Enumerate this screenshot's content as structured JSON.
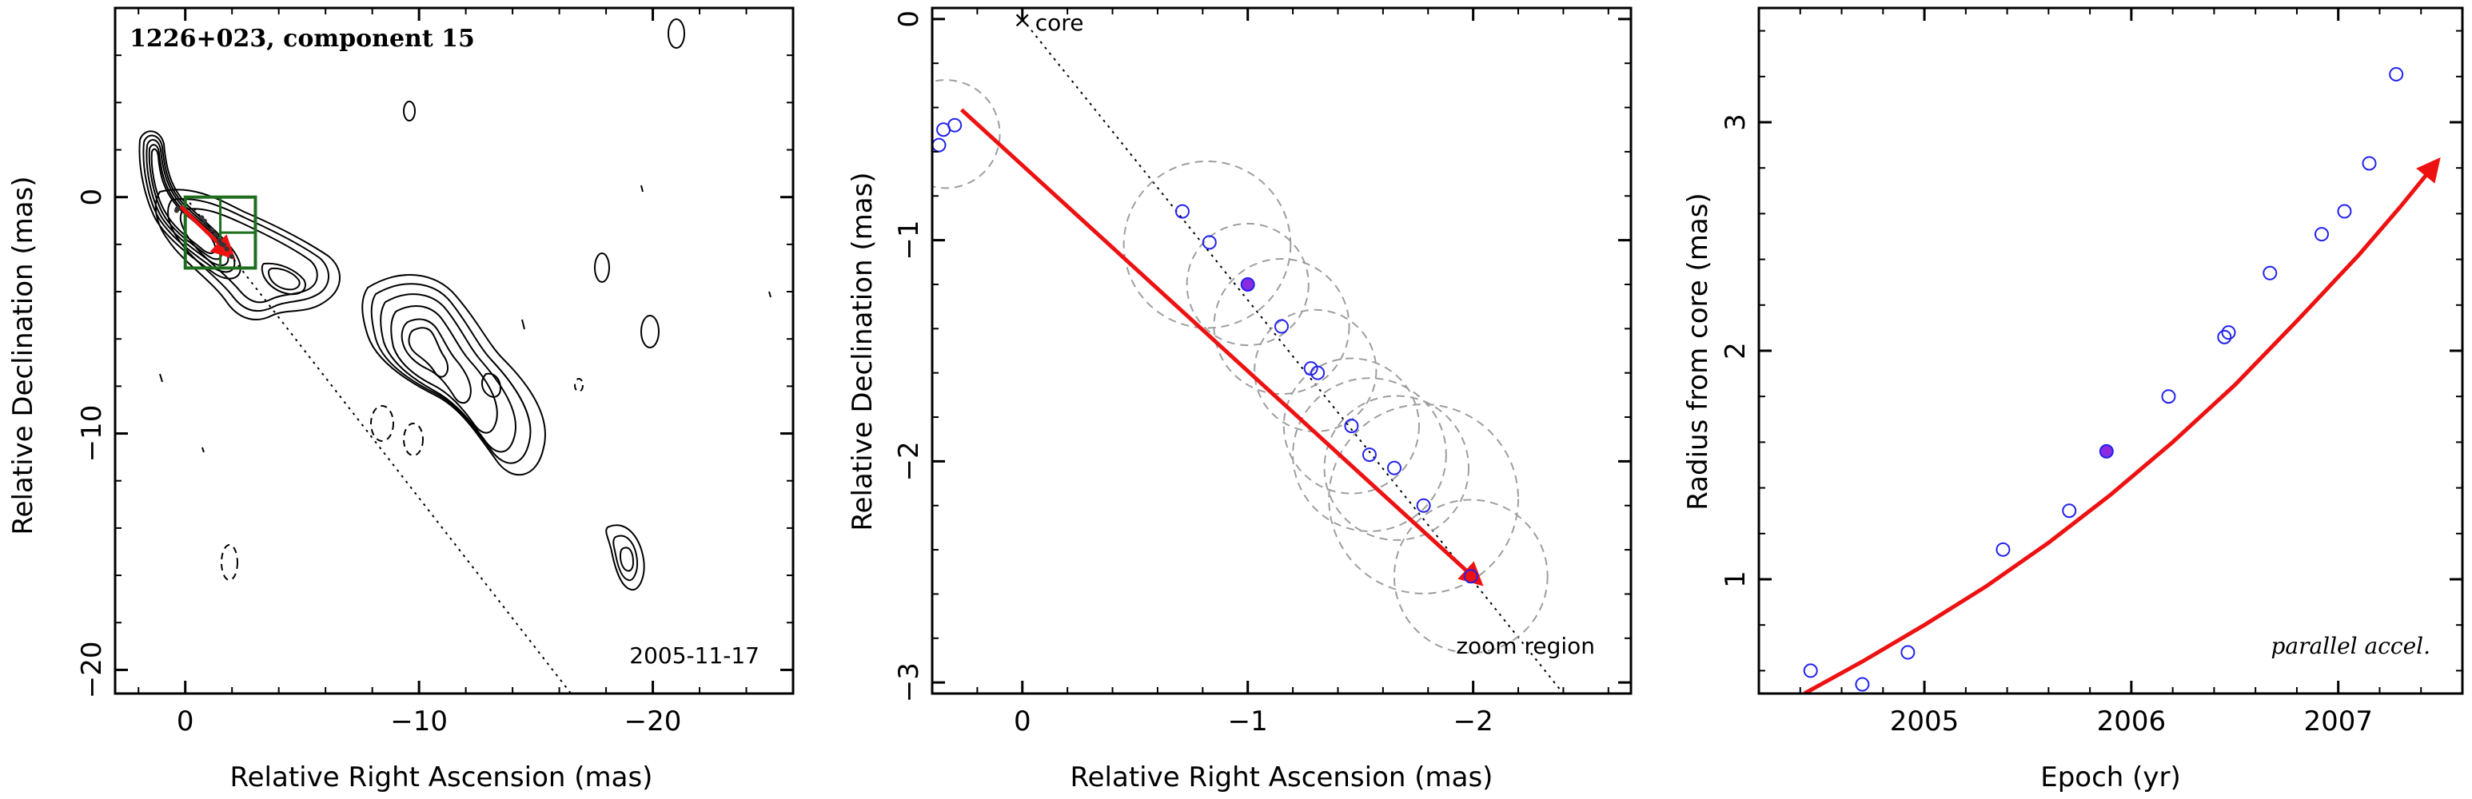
{
  "chart_data": [
    {
      "type": "contour",
      "title": "1226+023, component 15",
      "date": "2005-11-17",
      "xlabel": "Relative Right Ascension (mas)",
      "ylabel": "Relative Declination (mas)",
      "xlim": [
        3,
        -26
      ],
      "ylim": [
        -21,
        8
      ],
      "xticks": [
        0,
        -10,
        -20
      ],
      "yticks": [
        0,
        -10,
        -20
      ],
      "xtick_labels": [
        "0",
        "−10",
        "−20"
      ],
      "ytick_labels": [
        "0",
        "−10",
        "−20"
      ],
      "zoom_box": {
        "x": [
          0,
          -3
        ],
        "y": [
          0,
          -3
        ]
      },
      "jet_line": {
        "from": [
          0,
          0
        ],
        "to": [
          -16.5,
          -21
        ]
      },
      "track": {
        "from": [
          0.2,
          -0.4
        ],
        "to": [
          -2.0,
          -2.5
        ]
      },
      "colors": {
        "contour": "#000000",
        "box": "#1f6e1f",
        "track": "#ee1111",
        "dot": "#333333"
      }
    },
    {
      "type": "scatter",
      "xlabel": "Relative Right Ascension (mas)",
      "ylabel": "Relative Declination (mas)",
      "xlim": [
        0.4,
        -2.7
      ],
      "ylim": [
        -3.05,
        0.05
      ],
      "xticks": [
        0,
        -1,
        -2
      ],
      "yticks": [
        0,
        -1,
        -2,
        -3
      ],
      "xtick_labels": [
        "0",
        "−1",
        "−2"
      ],
      "ytick_labels": [
        "0",
        "−1",
        "−2",
        "−3"
      ],
      "core_label": "core",
      "zoom_label": "zoom region",
      "points": [
        {
          "x": 0.3,
          "y": -0.48
        },
        {
          "x": 0.35,
          "y": -0.5
        },
        {
          "x": 0.37,
          "y": -0.57
        },
        {
          "x": -0.71,
          "y": -0.87
        },
        {
          "x": -0.83,
          "y": -1.01
        },
        {
          "x": -1.15,
          "y": -1.39
        },
        {
          "x": -1.28,
          "y": -1.58
        },
        {
          "x": -1.31,
          "y": -1.6
        },
        {
          "x": -1.46,
          "y": -1.84
        },
        {
          "x": -1.54,
          "y": -1.97
        },
        {
          "x": -1.65,
          "y": -2.03
        },
        {
          "x": -1.78,
          "y": -2.2
        },
        {
          "x": -1.99,
          "y": -2.52
        }
      ],
      "highlight": {
        "x": -1.0,
        "y": -1.2
      },
      "circles": [
        {
          "x": 0.34,
          "y": -0.52,
          "r": 0.24
        },
        {
          "x": -0.82,
          "y": -1.02,
          "r": 0.37
        },
        {
          "x": -1.0,
          "y": -1.2,
          "r": 0.27
        },
        {
          "x": -1.15,
          "y": -1.39,
          "r": 0.3
        },
        {
          "x": -1.3,
          "y": -1.59,
          "r": 0.27
        },
        {
          "x": -1.46,
          "y": -1.84,
          "r": 0.3
        },
        {
          "x": -1.54,
          "y": -1.97,
          "r": 0.34
        },
        {
          "x": -1.66,
          "y": -2.03,
          "r": 0.32
        },
        {
          "x": -1.78,
          "y": -2.17,
          "r": 0.42
        },
        {
          "x": -1.99,
          "y": -2.52,
          "r": 0.34
        }
      ],
      "track": {
        "from": [
          0.27,
          -0.41
        ],
        "to": [
          -2.03,
          -2.55
        ]
      },
      "jet_line": {
        "from": [
          0,
          0
        ],
        "to": [
          -2.4,
          -3.05
        ]
      },
      "colors": {
        "points": "#2222ee",
        "highlight": "#8a2be2",
        "track": "#ee1111",
        "circles": "#9e9e9e"
      }
    },
    {
      "type": "scatter",
      "xlabel": "Epoch (yr)",
      "ylabel": "Radius from core (mas)",
      "annotation": "parallel accel.",
      "xlim": [
        2004.2,
        2007.6
      ],
      "ylim": [
        0.5,
        3.5
      ],
      "xticks": [
        2005,
        2006,
        2007
      ],
      "yticks": [
        1,
        2,
        3
      ],
      "xtick_labels": [
        "2005",
        "2006",
        "2007"
      ],
      "ytick_labels": [
        "1",
        "2",
        "3"
      ],
      "points": [
        {
          "x": 2004.45,
          "y": 0.6
        },
        {
          "x": 2004.7,
          "y": 0.54
        },
        {
          "x": 2004.92,
          "y": 0.68
        },
        {
          "x": 2005.38,
          "y": 1.13
        },
        {
          "x": 2005.7,
          "y": 1.3
        },
        {
          "x": 2006.18,
          "y": 1.8
        },
        {
          "x": 2006.45,
          "y": 2.06
        },
        {
          "x": 2006.47,
          "y": 2.08
        },
        {
          "x": 2006.67,
          "y": 2.34
        },
        {
          "x": 2006.92,
          "y": 2.51
        },
        {
          "x": 2007.03,
          "y": 2.61
        },
        {
          "x": 2007.15,
          "y": 2.82
        },
        {
          "x": 2007.28,
          "y": 3.21
        }
      ],
      "highlight": {
        "x": 2005.88,
        "y": 1.56
      },
      "fit_curve": {
        "x": [
          2004.42,
          2004.7,
          2005.0,
          2005.3,
          2005.6,
          2005.9,
          2006.2,
          2006.5,
          2006.8,
          2007.1,
          2007.3,
          2007.48
        ],
        "y": [
          0.5,
          0.64,
          0.8,
          0.97,
          1.16,
          1.37,
          1.6,
          1.85,
          2.13,
          2.42,
          2.63,
          2.83
        ]
      },
      "colors": {
        "points": "#2222ee",
        "highlight": "#8a2be2",
        "fit": "#ee1111"
      }
    }
  ]
}
